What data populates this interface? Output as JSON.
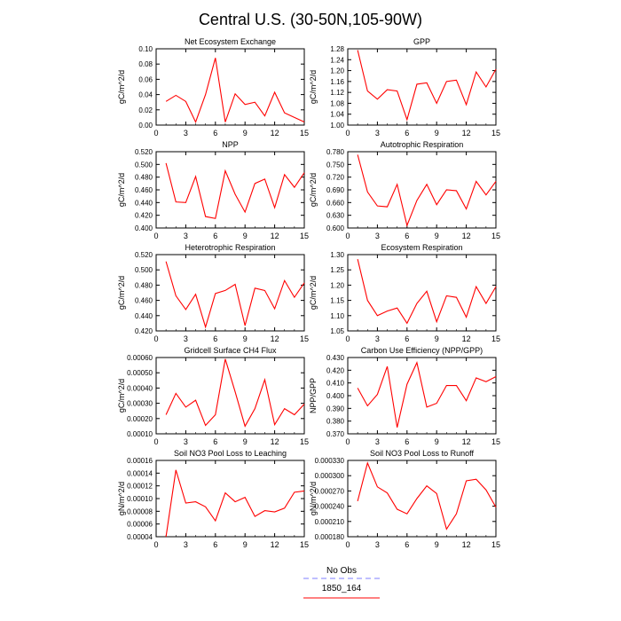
{
  "figure": {
    "title": "Central U.S. (30-50N,105-90W)",
    "legend": [
      {
        "label": "No Obs",
        "color": "#7f7fff",
        "dash": true
      },
      {
        "label": "1850_164",
        "color": "#ff0000",
        "dash": false
      }
    ]
  },
  "chart_data": [
    {
      "type": "line",
      "title": "Net Ecosystem Exchange",
      "ylabel": "gC/m^2/d",
      "x": [
        1,
        2,
        3,
        4,
        5,
        6,
        7,
        8,
        9,
        10,
        11,
        12,
        13,
        14,
        15
      ],
      "xlim": [
        0,
        15
      ],
      "xticks": [
        0,
        3,
        6,
        9,
        12,
        15
      ],
      "ylim": [
        0.0,
        0.1
      ],
      "yticks": [
        "0.00",
        "0.02",
        "0.04",
        "0.06",
        "0.08",
        "0.10"
      ],
      "series": [
        {
          "color": "#ff0000",
          "values": [
            0.031,
            0.039,
            0.031,
            0.004,
            0.04,
            0.088,
            0.004,
            0.041,
            0.027,
            0.03,
            0.012,
            0.043,
            0.016,
            0.01,
            0.004
          ]
        }
      ]
    },
    {
      "type": "line",
      "title": "GPP",
      "ylabel": "gC/m^2/d",
      "x": [
        1,
        2,
        3,
        4,
        5,
        6,
        7,
        8,
        9,
        10,
        11,
        12,
        13,
        14,
        15
      ],
      "xlim": [
        0,
        15
      ],
      "xticks": [
        0,
        3,
        6,
        9,
        12,
        15
      ],
      "ylim": [
        1.0,
        1.28
      ],
      "yticks": [
        "1.00",
        "1.04",
        "1.08",
        "1.12",
        "1.16",
        "1.20",
        "1.24",
        "1.28"
      ],
      "series": [
        {
          "color": "#ff0000",
          "values": [
            1.275,
            1.125,
            1.095,
            1.13,
            1.125,
            1.02,
            1.15,
            1.155,
            1.08,
            1.16,
            1.165,
            1.075,
            1.195,
            1.14,
            1.205
          ]
        }
      ]
    },
    {
      "type": "line",
      "title": "NPP",
      "ylabel": "gC/m^2/d",
      "x": [
        1,
        2,
        3,
        4,
        5,
        6,
        7,
        8,
        9,
        10,
        11,
        12,
        13,
        14,
        15
      ],
      "xlim": [
        0,
        15
      ],
      "xticks": [
        0,
        3,
        6,
        9,
        12,
        15
      ],
      "ylim": [
        0.4,
        0.52
      ],
      "yticks": [
        "0.400",
        "0.420",
        "0.440",
        "0.460",
        "0.480",
        "0.500",
        "0.520"
      ],
      "series": [
        {
          "color": "#ff0000",
          "values": [
            0.502,
            0.441,
            0.44,
            0.481,
            0.418,
            0.415,
            0.49,
            0.453,
            0.425,
            0.47,
            0.477,
            0.432,
            0.484,
            0.464,
            0.487
          ]
        }
      ]
    },
    {
      "type": "line",
      "title": "Autotrophic Respiration",
      "ylabel": "gC/m^2/d",
      "x": [
        1,
        2,
        3,
        4,
        5,
        6,
        7,
        8,
        9,
        10,
        11,
        12,
        13,
        14,
        15
      ],
      "xlim": [
        0,
        15
      ],
      "xticks": [
        0,
        3,
        6,
        9,
        12,
        15
      ],
      "ylim": [
        0.6,
        0.78
      ],
      "yticks": [
        "0.600",
        "0.630",
        "0.660",
        "0.690",
        "0.720",
        "0.750",
        "0.780"
      ],
      "series": [
        {
          "color": "#ff0000",
          "values": [
            0.773,
            0.685,
            0.652,
            0.65,
            0.703,
            0.606,
            0.665,
            0.703,
            0.655,
            0.69,
            0.688,
            0.645,
            0.71,
            0.678,
            0.71
          ]
        }
      ]
    },
    {
      "type": "line",
      "title": "Heterotrophic Respiration",
      "ylabel": "gC/m^2/d",
      "x": [
        1,
        2,
        3,
        4,
        5,
        6,
        7,
        8,
        9,
        10,
        11,
        12,
        13,
        14,
        15
      ],
      "xlim": [
        0,
        15
      ],
      "xticks": [
        0,
        3,
        6,
        9,
        12,
        15
      ],
      "ylim": [
        0.42,
        0.52
      ],
      "yticks": [
        "0.420",
        "0.440",
        "0.460",
        "0.480",
        "0.500",
        "0.520"
      ],
      "series": [
        {
          "color": "#ff0000",
          "values": [
            0.511,
            0.466,
            0.448,
            0.468,
            0.425,
            0.469,
            0.473,
            0.481,
            0.427,
            0.476,
            0.473,
            0.449,
            0.486,
            0.464,
            0.483
          ]
        }
      ]
    },
    {
      "type": "line",
      "title": "Ecosystem Respiration",
      "ylabel": "gC/m^2/d",
      "x": [
        1,
        2,
        3,
        4,
        5,
        6,
        7,
        8,
        9,
        10,
        11,
        12,
        13,
        14,
        15
      ],
      "xlim": [
        0,
        15
      ],
      "xticks": [
        0,
        3,
        6,
        9,
        12,
        15
      ],
      "ylim": [
        1.05,
        1.3
      ],
      "yticks": [
        "1.05",
        "1.10",
        "1.15",
        "1.20",
        "1.25",
        "1.30"
      ],
      "series": [
        {
          "color": "#ff0000",
          "values": [
            1.285,
            1.15,
            1.1,
            1.115,
            1.125,
            1.075,
            1.14,
            1.18,
            1.08,
            1.165,
            1.16,
            1.095,
            1.195,
            1.14,
            1.195
          ]
        }
      ]
    },
    {
      "type": "line",
      "title": "Gridcell Surface CH4 Flux",
      "ylabel": "gC/m^2/d",
      "x": [
        1,
        2,
        3,
        4,
        5,
        6,
        7,
        8,
        9,
        10,
        11,
        12,
        13,
        14,
        15
      ],
      "xlim": [
        0,
        15
      ],
      "xticks": [
        0,
        3,
        6,
        9,
        12,
        15
      ],
      "ylim": [
        0.0001,
        0.0006
      ],
      "yticks": [
        "0.00010",
        "0.00020",
        "0.00030",
        "0.00040",
        "0.00050",
        "0.00060"
      ],
      "series": [
        {
          "color": "#ff0000",
          "values": [
            0.000225,
            0.000365,
            0.000275,
            0.00032,
            0.000155,
            0.000225,
            0.00059,
            0.000375,
            0.00015,
            0.000265,
            0.000455,
            0.00016,
            0.000265,
            0.000225,
            0.000295
          ]
        }
      ]
    },
    {
      "type": "line",
      "title": "Carbon Use Efficiency (NPP/GPP)",
      "ylabel": "NPP/GPP",
      "x": [
        1,
        2,
        3,
        4,
        5,
        6,
        7,
        8,
        9,
        10,
        11,
        12,
        13,
        14,
        15
      ],
      "xlim": [
        0,
        15
      ],
      "xticks": [
        0,
        3,
        6,
        9,
        12,
        15
      ],
      "ylim": [
        0.37,
        0.43
      ],
      "yticks": [
        "0.370",
        "0.380",
        "0.390",
        "0.400",
        "0.410",
        "0.420",
        "0.430"
      ],
      "series": [
        {
          "color": "#ff0000",
          "values": [
            0.406,
            0.392,
            0.401,
            0.423,
            0.375,
            0.409,
            0.426,
            0.391,
            0.394,
            0.408,
            0.408,
            0.396,
            0.414,
            0.411,
            0.415
          ]
        }
      ]
    },
    {
      "type": "line",
      "title": "Soil NO3 Pool Loss to Leaching",
      "ylabel": "gN/m^2/d",
      "x": [
        1,
        2,
        3,
        4,
        5,
        6,
        7,
        8,
        9,
        10,
        11,
        12,
        13,
        14,
        15
      ],
      "xlim": [
        0,
        15
      ],
      "xticks": [
        0,
        3,
        6,
        9,
        12,
        15
      ],
      "ylim": [
        4e-05,
        0.00016
      ],
      "yticks": [
        "0.00004",
        "0.00006",
        "0.00008",
        "0.00010",
        "0.00012",
        "0.00014",
        "0.00016"
      ],
      "series": [
        {
          "color": "#ff0000",
          "values": [
            4e-05,
            0.000145,
            9.3e-05,
            9.5e-05,
            8.7e-05,
            6.5e-05,
            0.000109,
            9.5e-05,
            0.000102,
            7.2e-05,
            8.1e-05,
            7.9e-05,
            8.5e-05,
            0.00011,
            0.000112
          ]
        }
      ]
    },
    {
      "type": "line",
      "title": "Soil NO3 Pool Loss to Runoff",
      "ylabel": "gN/m^2/d",
      "x": [
        1,
        2,
        3,
        4,
        5,
        6,
        7,
        8,
        9,
        10,
        11,
        12,
        13,
        14,
        15
      ],
      "xlim": [
        0,
        15
      ],
      "xticks": [
        0,
        3,
        6,
        9,
        12,
        15
      ],
      "ylim": [
        0.00018,
        0.00033
      ],
      "yticks": [
        "0.000180",
        "0.000210",
        "0.000240",
        "0.000270",
        "0.000300",
        "0.000330"
      ],
      "series": [
        {
          "color": "#ff0000",
          "values": [
            0.00025,
            0.000325,
            0.000278,
            0.000266,
            0.000234,
            0.000225,
            0.000255,
            0.00028,
            0.000265,
            0.000195,
            0.000225,
            0.00029,
            0.000293,
            0.000272,
            0.000238
          ]
        }
      ]
    }
  ]
}
